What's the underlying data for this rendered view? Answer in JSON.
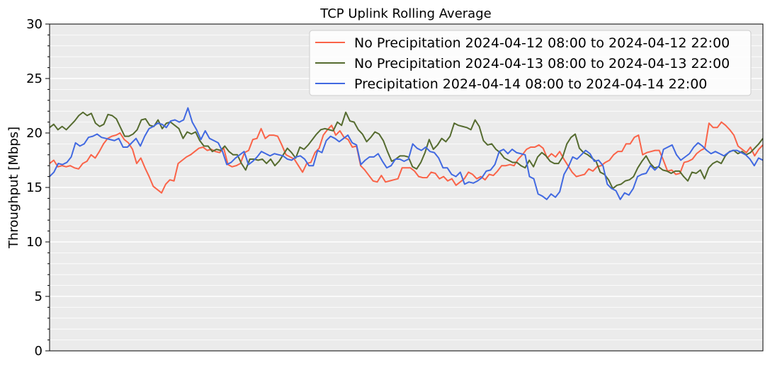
{
  "chart_data": {
    "type": "line",
    "title": "TCP Uplink Rolling Average",
    "xlabel": "",
    "ylabel": "Throughput [Mbps]",
    "ylim": [
      0,
      30
    ],
    "yticks": [
      "0",
      "5",
      "10",
      "15",
      "20",
      "25",
      "30"
    ],
    "grid": "horizontal, major and minor",
    "legend_position": "top-right",
    "x_ticks_shown": false,
    "series": [
      {
        "name": "No Precipitation 2024-04-12 08:00 to 2024-04-12 22:00",
        "color": "#fa6348",
        "values": [
          17.2,
          17.5,
          16.9,
          17.0,
          16.9,
          17.0,
          16.8,
          16.7,
          17.2,
          17.4,
          18.0,
          17.7,
          18.3,
          19.0,
          19.5,
          19.7,
          19.8,
          20.0,
          19.4,
          19.1,
          18.5,
          17.2,
          17.7,
          16.8,
          16.0,
          15.1,
          14.8,
          14.5,
          15.3,
          15.7,
          15.6,
          17.2,
          17.5,
          17.8,
          18.0,
          18.3,
          18.6,
          18.7,
          18.4,
          18.5,
          18.3,
          18.2,
          18.6,
          17.1,
          16.9,
          17.0,
          17.2,
          18.2,
          18.4,
          19.4,
          19.5,
          20.4,
          19.5,
          19.8,
          19.8,
          19.7,
          18.9,
          18.0,
          17.8,
          17.6,
          17.0,
          16.4,
          17.2,
          17.3,
          18.2,
          18.6,
          19.8,
          20.3,
          20.7,
          19.8,
          20.2,
          19.6,
          19.4,
          18.7,
          18.8,
          17.0,
          16.6,
          16.1,
          15.6,
          15.5,
          16.1,
          15.5,
          15.6,
          15.7,
          15.8,
          16.8,
          16.8,
          16.8,
          16.5,
          16.0,
          15.9,
          15.9,
          16.4,
          16.3,
          15.8,
          16.0,
          15.6,
          15.8,
          15.2,
          15.5,
          15.8,
          16.4,
          16.2,
          15.8,
          16.0,
          15.7,
          16.2,
          16.1,
          16.5,
          17.0,
          17.0,
          17.1,
          17.0,
          17.6,
          18.0,
          18.5,
          18.7,
          18.7,
          18.9,
          18.6,
          17.7,
          18.1,
          17.8,
          18.3,
          17.6,
          17.0,
          16.4,
          16.0,
          16.1,
          16.2,
          16.7,
          16.5,
          16.9,
          17.0,
          17.3,
          17.5,
          18.0,
          18.3,
          18.3,
          19.0,
          19.0,
          19.6,
          19.8,
          18.0,
          18.2,
          18.3,
          18.4,
          18.4,
          17.5,
          16.5,
          16.6,
          16.2,
          16.3,
          17.3,
          17.4,
          17.6,
          18.1,
          18.4,
          18.6,
          20.9,
          20.5,
          20.5,
          21.0,
          20.7,
          20.3,
          19.8,
          18.8,
          18.5,
          18.2,
          18.7,
          17.9,
          18.5,
          18.9
        ]
      },
      {
        "name": "No Precipitation 2024-04-13 08:00 to 2024-04-13 22:00",
        "color": "#556b2f",
        "values": [
          20.5,
          20.8,
          20.3,
          20.6,
          20.3,
          20.7,
          21.1,
          21.6,
          21.9,
          21.6,
          21.8,
          20.9,
          20.6,
          20.8,
          21.7,
          21.6,
          21.3,
          20.5,
          19.7,
          19.7,
          19.9,
          20.3,
          21.2,
          21.3,
          20.7,
          20.6,
          21.2,
          20.4,
          20.9,
          21.0,
          20.7,
          20.4,
          19.5,
          20.1,
          19.9,
          20.1,
          19.3,
          18.8,
          18.8,
          18.3,
          18.5,
          18.4,
          18.8,
          18.3,
          18.0,
          18.0,
          17.2,
          16.6,
          17.6,
          17.6,
          17.5,
          17.6,
          17.2,
          17.6,
          17.0,
          17.4,
          18.0,
          18.6,
          18.2,
          17.7,
          18.7,
          18.5,
          18.9,
          19.4,
          19.9,
          20.3,
          20.4,
          20.3,
          20.2,
          21.0,
          20.7,
          21.9,
          21.1,
          21.0,
          20.3,
          19.9,
          19.2,
          19.6,
          20.1,
          19.9,
          19.3,
          18.3,
          17.4,
          17.6,
          17.9,
          17.9,
          17.8,
          16.9,
          16.7,
          17.3,
          18.2,
          19.4,
          18.5,
          18.9,
          19.5,
          19.2,
          19.7,
          20.9,
          20.7,
          20.6,
          20.5,
          20.3,
          21.2,
          20.6,
          19.3,
          18.9,
          19.0,
          18.5,
          18.2,
          17.7,
          17.5,
          17.3,
          17.3,
          17.0,
          16.8,
          17.5,
          16.9,
          17.8,
          18.2,
          17.9,
          17.4,
          17.2,
          17.2,
          17.8,
          19.0,
          19.6,
          19.9,
          18.6,
          18.2,
          18.0,
          17.7,
          17.4,
          16.4,
          16.2,
          15.7,
          14.9,
          15.2,
          15.3,
          15.6,
          15.7,
          16.0,
          16.8,
          17.4,
          17.9,
          17.2,
          16.8,
          16.9,
          16.6,
          16.5,
          16.3,
          16.5,
          16.5,
          16.0,
          15.6,
          16.4,
          16.3,
          16.6,
          15.8,
          16.8,
          17.2,
          17.4,
          17.2,
          17.9,
          18.3,
          18.4,
          18.1,
          18.3,
          18.0,
          18.2,
          18.6,
          19.0,
          19.5
        ]
      },
      {
        "name": "Precipitation 2024-04-14 08:00 to 2024-04-14 22:00",
        "color": "#4169e1",
        "values": [
          16.0,
          16.4,
          17.2,
          17.1,
          17.3,
          17.8,
          19.1,
          18.8,
          19.0,
          19.6,
          19.7,
          19.9,
          19.6,
          19.5,
          19.4,
          19.3,
          19.5,
          18.7,
          18.7,
          19.1,
          19.5,
          18.8,
          19.7,
          20.4,
          20.6,
          20.9,
          20.8,
          20.5,
          21.1,
          21.2,
          21.0,
          21.2,
          22.3,
          21.0,
          20.3,
          19.4,
          20.2,
          19.5,
          19.3,
          19.1,
          18.3,
          17.1,
          17.3,
          17.7,
          18.0,
          18.3,
          17.1,
          17.4,
          17.8,
          18.3,
          18.1,
          17.9,
          18.1,
          18.0,
          17.9,
          17.6,
          17.5,
          17.8,
          17.9,
          17.6,
          17.0,
          17.0,
          18.4,
          18.2,
          19.3,
          19.7,
          19.5,
          19.2,
          19.5,
          19.8,
          19.1,
          18.9,
          17.1,
          17.5,
          17.8,
          17.8,
          18.1,
          17.4,
          16.8,
          17.0,
          17.6,
          17.6,
          17.4,
          17.6,
          19.0,
          18.6,
          18.4,
          18.7,
          18.3,
          18.2,
          17.7,
          16.8,
          16.8,
          16.2,
          16.0,
          16.4,
          15.3,
          15.5,
          15.4,
          15.6,
          15.9,
          16.5,
          16.6,
          17.1,
          18.3,
          18.5,
          18.1,
          18.5,
          18.2,
          18.1,
          18.0,
          16.0,
          15.8,
          14.4,
          14.2,
          13.9,
          14.4,
          14.1,
          14.6,
          16.2,
          16.9,
          17.8,
          17.6,
          18.0,
          18.4,
          18.1,
          17.4,
          17.5,
          17.0,
          15.3,
          14.9,
          14.7,
          13.9,
          14.5,
          14.3,
          14.9,
          16.0,
          16.2,
          16.3,
          17.0,
          16.6,
          17.0,
          18.5,
          18.7,
          18.9,
          18.0,
          17.5,
          17.8,
          18.1,
          18.7,
          19.1,
          18.8,
          18.4,
          18.1,
          18.3,
          18.1,
          17.9,
          18.2,
          18.4,
          18.4,
          18.2,
          18.0,
          17.6,
          17.0,
          17.7,
          17.5
        ]
      }
    ]
  }
}
